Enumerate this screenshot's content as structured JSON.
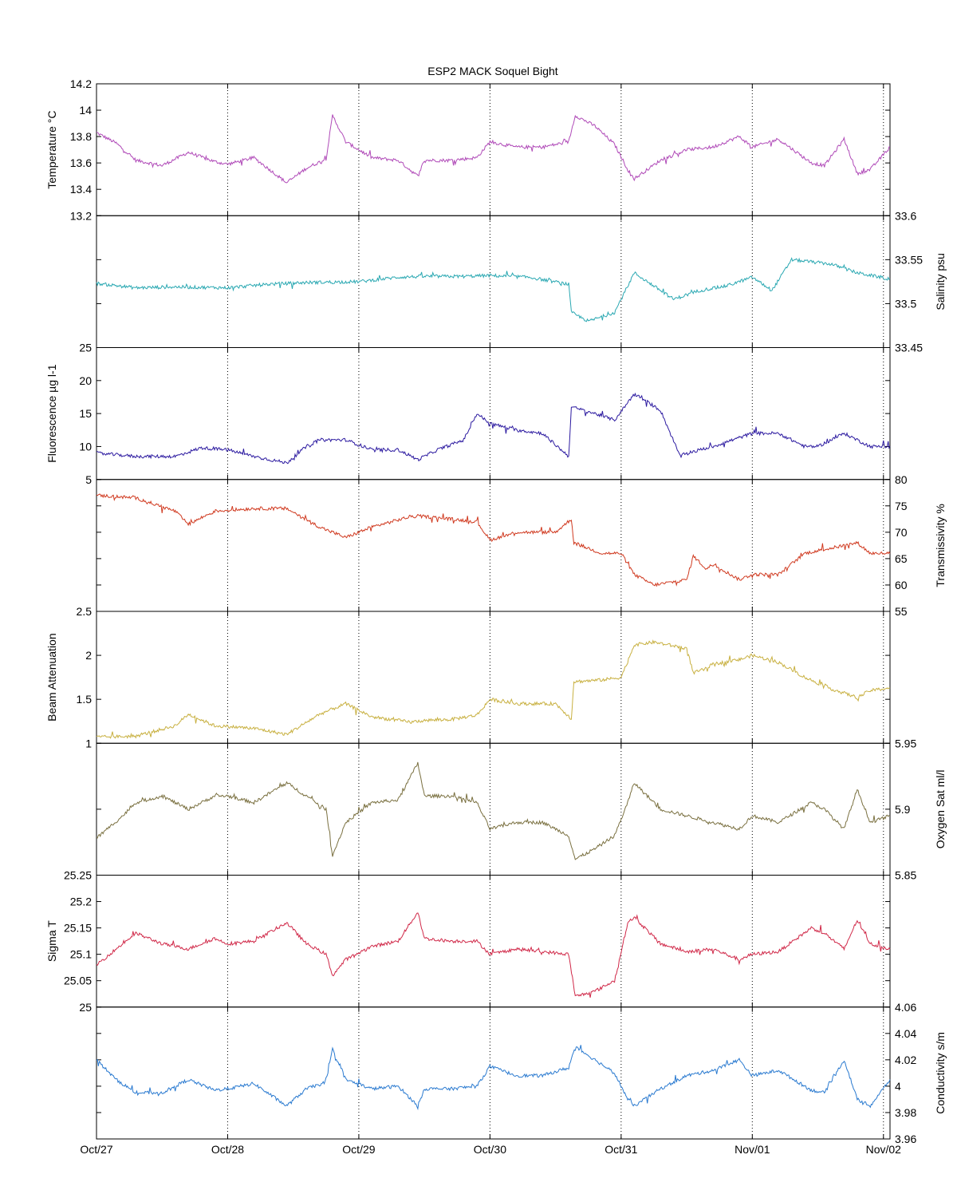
{
  "chart_data": {
    "type": "line",
    "title": "ESP2 MACK  Soquel Bight",
    "x_tick_labels": [
      "Oct/27",
      "Oct/28",
      "Oct/29",
      "Oct/30",
      "Oct/31",
      "Nov/01",
      "Nov/02"
    ],
    "x_range_days": [
      0,
      6.05
    ],
    "grid": "vertical dotted lines at each day",
    "panels": [
      {
        "ylabel": "Temperature °C",
        "ylabel_side": "left",
        "color": "#b04ab8",
        "ylim": [
          13.2,
          14.2
        ],
        "ticks": [
          "13.2",
          "13.4",
          "13.6",
          "13.8",
          "14",
          "14.2"
        ],
        "x": [
          0,
          0.15,
          0.3,
          0.5,
          0.7,
          0.9,
          1.0,
          1.2,
          1.45,
          1.6,
          1.75,
          1.8,
          1.9,
          2.1,
          2.3,
          2.45,
          2.5,
          2.7,
          2.9,
          3.0,
          3.2,
          3.4,
          3.6,
          3.65,
          3.8,
          3.95,
          4.05,
          4.1,
          4.3,
          4.5,
          4.7,
          4.9,
          5.0,
          5.2,
          5.45,
          5.55,
          5.7,
          5.8,
          5.9,
          6.05
        ],
        "values": [
          13.83,
          13.75,
          13.62,
          13.58,
          13.68,
          13.61,
          13.59,
          13.64,
          13.45,
          13.56,
          13.63,
          13.96,
          13.76,
          13.64,
          13.62,
          13.5,
          13.62,
          13.62,
          13.64,
          13.76,
          13.72,
          13.72,
          13.76,
          13.96,
          13.88,
          13.74,
          13.55,
          13.48,
          13.62,
          13.7,
          13.72,
          13.8,
          13.72,
          13.78,
          13.6,
          13.58,
          13.78,
          13.52,
          13.55,
          13.72
        ]
      },
      {
        "ylabel": "Salinity psu",
        "ylabel_side": "right",
        "color": "#2aa8b2",
        "ylim": [
          33.45,
          33.6
        ],
        "ticks": [
          "33.45",
          "33.5",
          "33.55",
          "33.6"
        ],
        "x": [
          0,
          0.3,
          0.6,
          1.0,
          1.3,
          1.6,
          2.0,
          2.3,
          2.5,
          2.8,
          3.0,
          3.3,
          3.6,
          3.62,
          3.75,
          3.95,
          4.1,
          4.4,
          4.6,
          4.8,
          5.0,
          5.15,
          5.3,
          5.6,
          5.8,
          6.05
        ],
        "values": [
          33.523,
          33.518,
          33.519,
          33.518,
          33.522,
          33.524,
          33.525,
          33.53,
          33.531,
          33.531,
          33.532,
          33.53,
          33.522,
          33.49,
          33.48,
          33.49,
          33.535,
          33.505,
          33.515,
          33.52,
          33.53,
          33.515,
          33.55,
          33.545,
          33.535,
          33.528
        ]
      },
      {
        "ylabel": "Fluorescence µg l-1",
        "ylabel_side": "left",
        "color": "#2c1aa0",
        "ylim": [
          5,
          25
        ],
        "ticks": [
          "5",
          "10",
          "15",
          "20",
          "25"
        ],
        "x": [
          0,
          0.3,
          0.6,
          0.8,
          1.0,
          1.2,
          1.45,
          1.6,
          1.7,
          1.9,
          2.1,
          2.3,
          2.45,
          2.6,
          2.8,
          2.9,
          3.0,
          3.2,
          3.4,
          3.6,
          3.62,
          3.8,
          3.95,
          4.1,
          4.3,
          4.45,
          4.5,
          4.7,
          5.0,
          5.2,
          5.4,
          5.5,
          5.7,
          5.9,
          6.05
        ],
        "values": [
          9,
          8.5,
          8.5,
          9.8,
          9.5,
          8.5,
          7.5,
          10,
          11,
          11,
          9.5,
          9.5,
          8,
          9.5,
          11,
          15,
          13.5,
          12.5,
          12,
          8.5,
          16,
          15,
          14,
          18,
          15.5,
          8.5,
          9,
          10,
          12,
          12,
          10,
          10,
          12,
          10,
          10
        ]
      },
      {
        "ylabel": "Transmissivity %",
        "ylabel_side": "right",
        "color": "#d03a20",
        "ylim": [
          55,
          80
        ],
        "ticks": [
          "55",
          "60",
          "65",
          "70",
          "75",
          "80"
        ],
        "x": [
          0,
          0.3,
          0.6,
          0.7,
          0.9,
          1.2,
          1.45,
          1.7,
          1.9,
          2.1,
          2.4,
          2.5,
          2.7,
          2.9,
          3.0,
          3.2,
          3.5,
          3.62,
          3.64,
          3.85,
          4.0,
          4.1,
          4.25,
          4.5,
          4.55,
          4.65,
          4.7,
          4.9,
          5.0,
          5.2,
          5.4,
          5.6,
          5.8,
          5.9,
          6.05
        ],
        "values": [
          77,
          76.5,
          74,
          71.5,
          74,
          74.5,
          74.5,
          71,
          69,
          71,
          73,
          73,
          72.5,
          72,
          68.5,
          70,
          70,
          72.5,
          68,
          66,
          66,
          62,
          60,
          61,
          65.5,
          63,
          64,
          61,
          62,
          62,
          66,
          67,
          68,
          66,
          66
        ]
      },
      {
        "ylabel": "Beam Attenuation",
        "ylabel_side": "left",
        "color": "#c8b040",
        "ylim": [
          1,
          2.5
        ],
        "ticks": [
          "1",
          "1.5",
          "2",
          "2.5"
        ],
        "x": [
          0,
          0.3,
          0.6,
          0.7,
          0.9,
          1.2,
          1.45,
          1.7,
          1.9,
          2.1,
          2.4,
          2.5,
          2.7,
          2.9,
          3.0,
          3.2,
          3.5,
          3.62,
          3.64,
          3.85,
          4.0,
          4.1,
          4.25,
          4.5,
          4.55,
          4.65,
          4.7,
          4.9,
          5.0,
          5.2,
          5.4,
          5.6,
          5.8,
          5.9,
          6.05
        ],
        "values": [
          1.07,
          1.08,
          1.2,
          1.33,
          1.2,
          1.17,
          1.1,
          1.33,
          1.45,
          1.3,
          1.24,
          1.26,
          1.27,
          1.32,
          1.5,
          1.45,
          1.45,
          1.28,
          1.7,
          1.72,
          1.75,
          2.12,
          2.15,
          2.08,
          1.8,
          1.85,
          1.9,
          1.95,
          2.0,
          1.92,
          1.75,
          1.62,
          1.52,
          1.6,
          1.63
        ]
      },
      {
        "ylabel": "Oxygen Sat ml/l",
        "ylabel_side": "right",
        "color": "#7a7040",
        "ylim": [
          5.85,
          5.95
        ],
        "ticks": [
          "5.85",
          "5.9",
          "5.95"
        ],
        "x": [
          0,
          0.2,
          0.3,
          0.5,
          0.7,
          0.9,
          1.0,
          1.2,
          1.45,
          1.6,
          1.75,
          1.8,
          1.9,
          2.1,
          2.3,
          2.45,
          2.5,
          2.7,
          2.9,
          3.0,
          3.2,
          3.4,
          3.6,
          3.65,
          3.8,
          3.95,
          4.05,
          4.1,
          4.3,
          4.5,
          4.7,
          4.9,
          5.0,
          5.2,
          5.45,
          5.55,
          5.7,
          5.8,
          5.9,
          6.05
        ],
        "values": [
          5.878,
          5.895,
          5.905,
          5.91,
          5.9,
          5.91,
          5.91,
          5.905,
          5.92,
          5.91,
          5.9,
          5.865,
          5.89,
          5.905,
          5.907,
          5.935,
          5.91,
          5.91,
          5.905,
          5.885,
          5.89,
          5.89,
          5.88,
          5.862,
          5.87,
          5.88,
          5.905,
          5.92,
          5.9,
          5.895,
          5.89,
          5.885,
          5.895,
          5.89,
          5.905,
          5.9,
          5.885,
          5.915,
          5.89,
          5.895
        ]
      },
      {
        "ylabel": "Sigma T",
        "ylabel_side": "left",
        "color": "#d02848",
        "ylim": [
          25,
          25.25
        ],
        "ticks": [
          "25",
          "25.05",
          "25.1",
          "25.15",
          "25.2",
          "25.25"
        ],
        "x": [
          0,
          0.15,
          0.3,
          0.5,
          0.7,
          0.9,
          1.0,
          1.2,
          1.45,
          1.6,
          1.75,
          1.8,
          1.9,
          2.1,
          2.3,
          2.45,
          2.5,
          2.7,
          2.9,
          3.0,
          3.2,
          3.4,
          3.6,
          3.65,
          3.8,
          3.95,
          4.05,
          4.1,
          4.3,
          4.5,
          4.7,
          4.9,
          5.0,
          5.2,
          5.45,
          5.55,
          5.7,
          5.8,
          5.9,
          6.05
        ],
        "values": [
          25.08,
          25.11,
          25.14,
          25.12,
          25.11,
          25.13,
          25.12,
          25.125,
          25.16,
          25.12,
          25.1,
          25.06,
          25.09,
          25.115,
          25.125,
          25.18,
          25.13,
          25.125,
          25.125,
          25.1,
          25.11,
          25.105,
          25.1,
          25.02,
          25.03,
          25.05,
          25.16,
          25.17,
          25.12,
          25.105,
          25.11,
          25.09,
          25.1,
          25.105,
          25.15,
          25.14,
          25.11,
          25.165,
          25.12,
          25.11
        ]
      },
      {
        "ylabel": "Conductivity s/m",
        "ylabel_side": "right",
        "color": "#2a7ad0",
        "ylim": [
          3.96,
          4.06
        ],
        "ticks": [
          "3.96",
          "3.98",
          "4",
          "4.02",
          "4.04",
          "4.06"
        ],
        "x": [
          0,
          0.15,
          0.3,
          0.5,
          0.7,
          0.9,
          1.0,
          1.2,
          1.45,
          1.6,
          1.75,
          1.8,
          1.9,
          2.1,
          2.3,
          2.45,
          2.5,
          2.7,
          2.9,
          3.0,
          3.2,
          3.4,
          3.6,
          3.65,
          3.8,
          3.95,
          4.05,
          4.1,
          4.3,
          4.5,
          4.7,
          4.9,
          5.0,
          5.2,
          5.45,
          5.55,
          5.7,
          5.8,
          5.9,
          6.05
        ],
        "values": [
          4.02,
          4.005,
          3.995,
          3.995,
          4.005,
          3.997,
          3.998,
          4.002,
          3.985,
          3.998,
          4.003,
          4.028,
          4.005,
          3.998,
          4.0,
          3.985,
          3.998,
          3.998,
          4.0,
          4.015,
          4.008,
          4.008,
          4.014,
          4.03,
          4.02,
          4.01,
          3.99,
          3.985,
          3.998,
          4.008,
          4.012,
          4.02,
          4.008,
          4.012,
          3.997,
          3.995,
          4.02,
          3.99,
          3.985,
          4.005
        ]
      }
    ]
  }
}
